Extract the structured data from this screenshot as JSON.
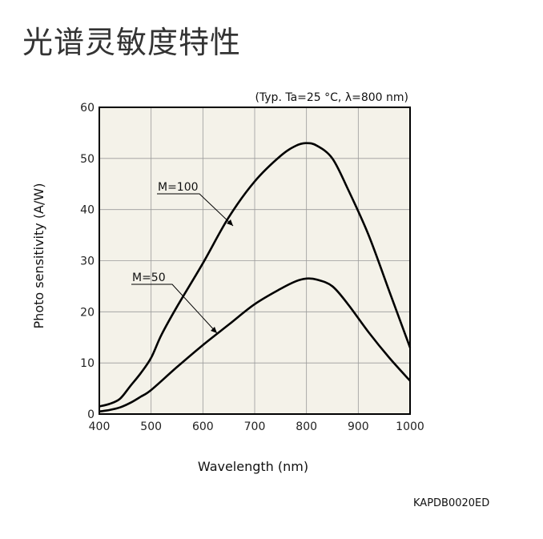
{
  "page_title": "光谱灵敏度特性",
  "figure_code": "KAPDB0020ED",
  "chart_data": {
    "type": "line",
    "title": "",
    "conditions": "(Typ. Ta=25 °C, λ=800 nm)",
    "xlabel": "Wavelength (nm)",
    "ylabel": "Photo sensitivity (A/W)",
    "xlim": [
      400,
      1000
    ],
    "ylim": [
      0,
      60
    ],
    "xticks": [
      400,
      500,
      600,
      700,
      800,
      900,
      1000
    ],
    "yticks": [
      0,
      10,
      20,
      30,
      40,
      50,
      60
    ],
    "grid": true,
    "plot_background": "#f4f2e9",
    "line_color": "#000000",
    "series": [
      {
        "name": "M=100",
        "x": [
          400,
          420,
          440,
          460,
          480,
          500,
          520,
          550,
          600,
          650,
          700,
          750,
          780,
          800,
          820,
          850,
          880,
          920,
          960,
          1000
        ],
        "y": [
          1.5,
          2,
          3,
          5.5,
          8,
          11,
          15.5,
          21,
          29.5,
          38.5,
          45.5,
          50.5,
          52.5,
          53,
          52.5,
          50,
          44,
          35,
          24,
          13
        ]
      },
      {
        "name": "M=50",
        "x": [
          400,
          420,
          440,
          460,
          480,
          500,
          550,
          600,
          650,
          700,
          750,
          780,
          800,
          820,
          850,
          880,
          920,
          960,
          1000
        ],
        "y": [
          0.5,
          0.8,
          1.3,
          2.2,
          3.4,
          4.7,
          9.2,
          13.5,
          17.5,
          21.5,
          24.5,
          26,
          26.5,
          26.3,
          25,
          21.5,
          16,
          11,
          6.5
        ]
      }
    ]
  }
}
